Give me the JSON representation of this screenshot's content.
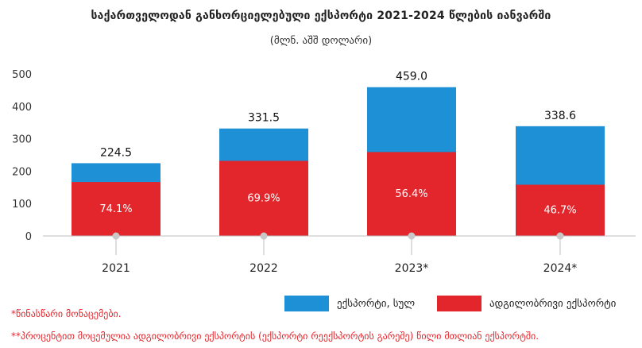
{
  "header": {
    "title": "საქართველოდან განხორციელებული ექსპორტი 2021-2024 წლების იანვარში",
    "subtitle": "(მლნ. აშშ დოლარი)"
  },
  "legend": {
    "total_label": "ექსპორტი, სულ",
    "domestic_label": "ადგილობრივი ექსპორტი"
  },
  "notes": {
    "preliminary": "*წინასწარი მონაცემები.",
    "percent_note": "**პროცენტით მოცემულია ადგილობრივი ექსპორტის (ექსპორტი რეექსპორტის გარეშე) წილი მთლიან ექსპორტში."
  },
  "colors": {
    "total": "#1e90d6",
    "domestic": "#e3262c",
    "axis": "#bfbfbf",
    "dot": "#c8c8c8"
  },
  "chart_data": {
    "type": "bar",
    "stacked": false,
    "overlay": true,
    "categories": [
      "2021",
      "2022",
      "2023*",
      "2024*"
    ],
    "ylim": [
      0,
      500
    ],
    "yticks": [
      0,
      100,
      200,
      300,
      400,
      500
    ],
    "grid": false,
    "series": [
      {
        "name": "ექსპორტი, სულ",
        "values": [
          224.5,
          331.5,
          459.0,
          338.6
        ],
        "labels": [
          "224.5",
          "331.5",
          "459.0",
          "338.6"
        ]
      },
      {
        "name": "ადგილობრივი ექსპორტი",
        "values": [
          166.4,
          231.7,
          258.9,
          158.1
        ],
        "labels": [
          "74.1%",
          "69.9%",
          "56.4%",
          "46.7%"
        ]
      }
    ]
  }
}
